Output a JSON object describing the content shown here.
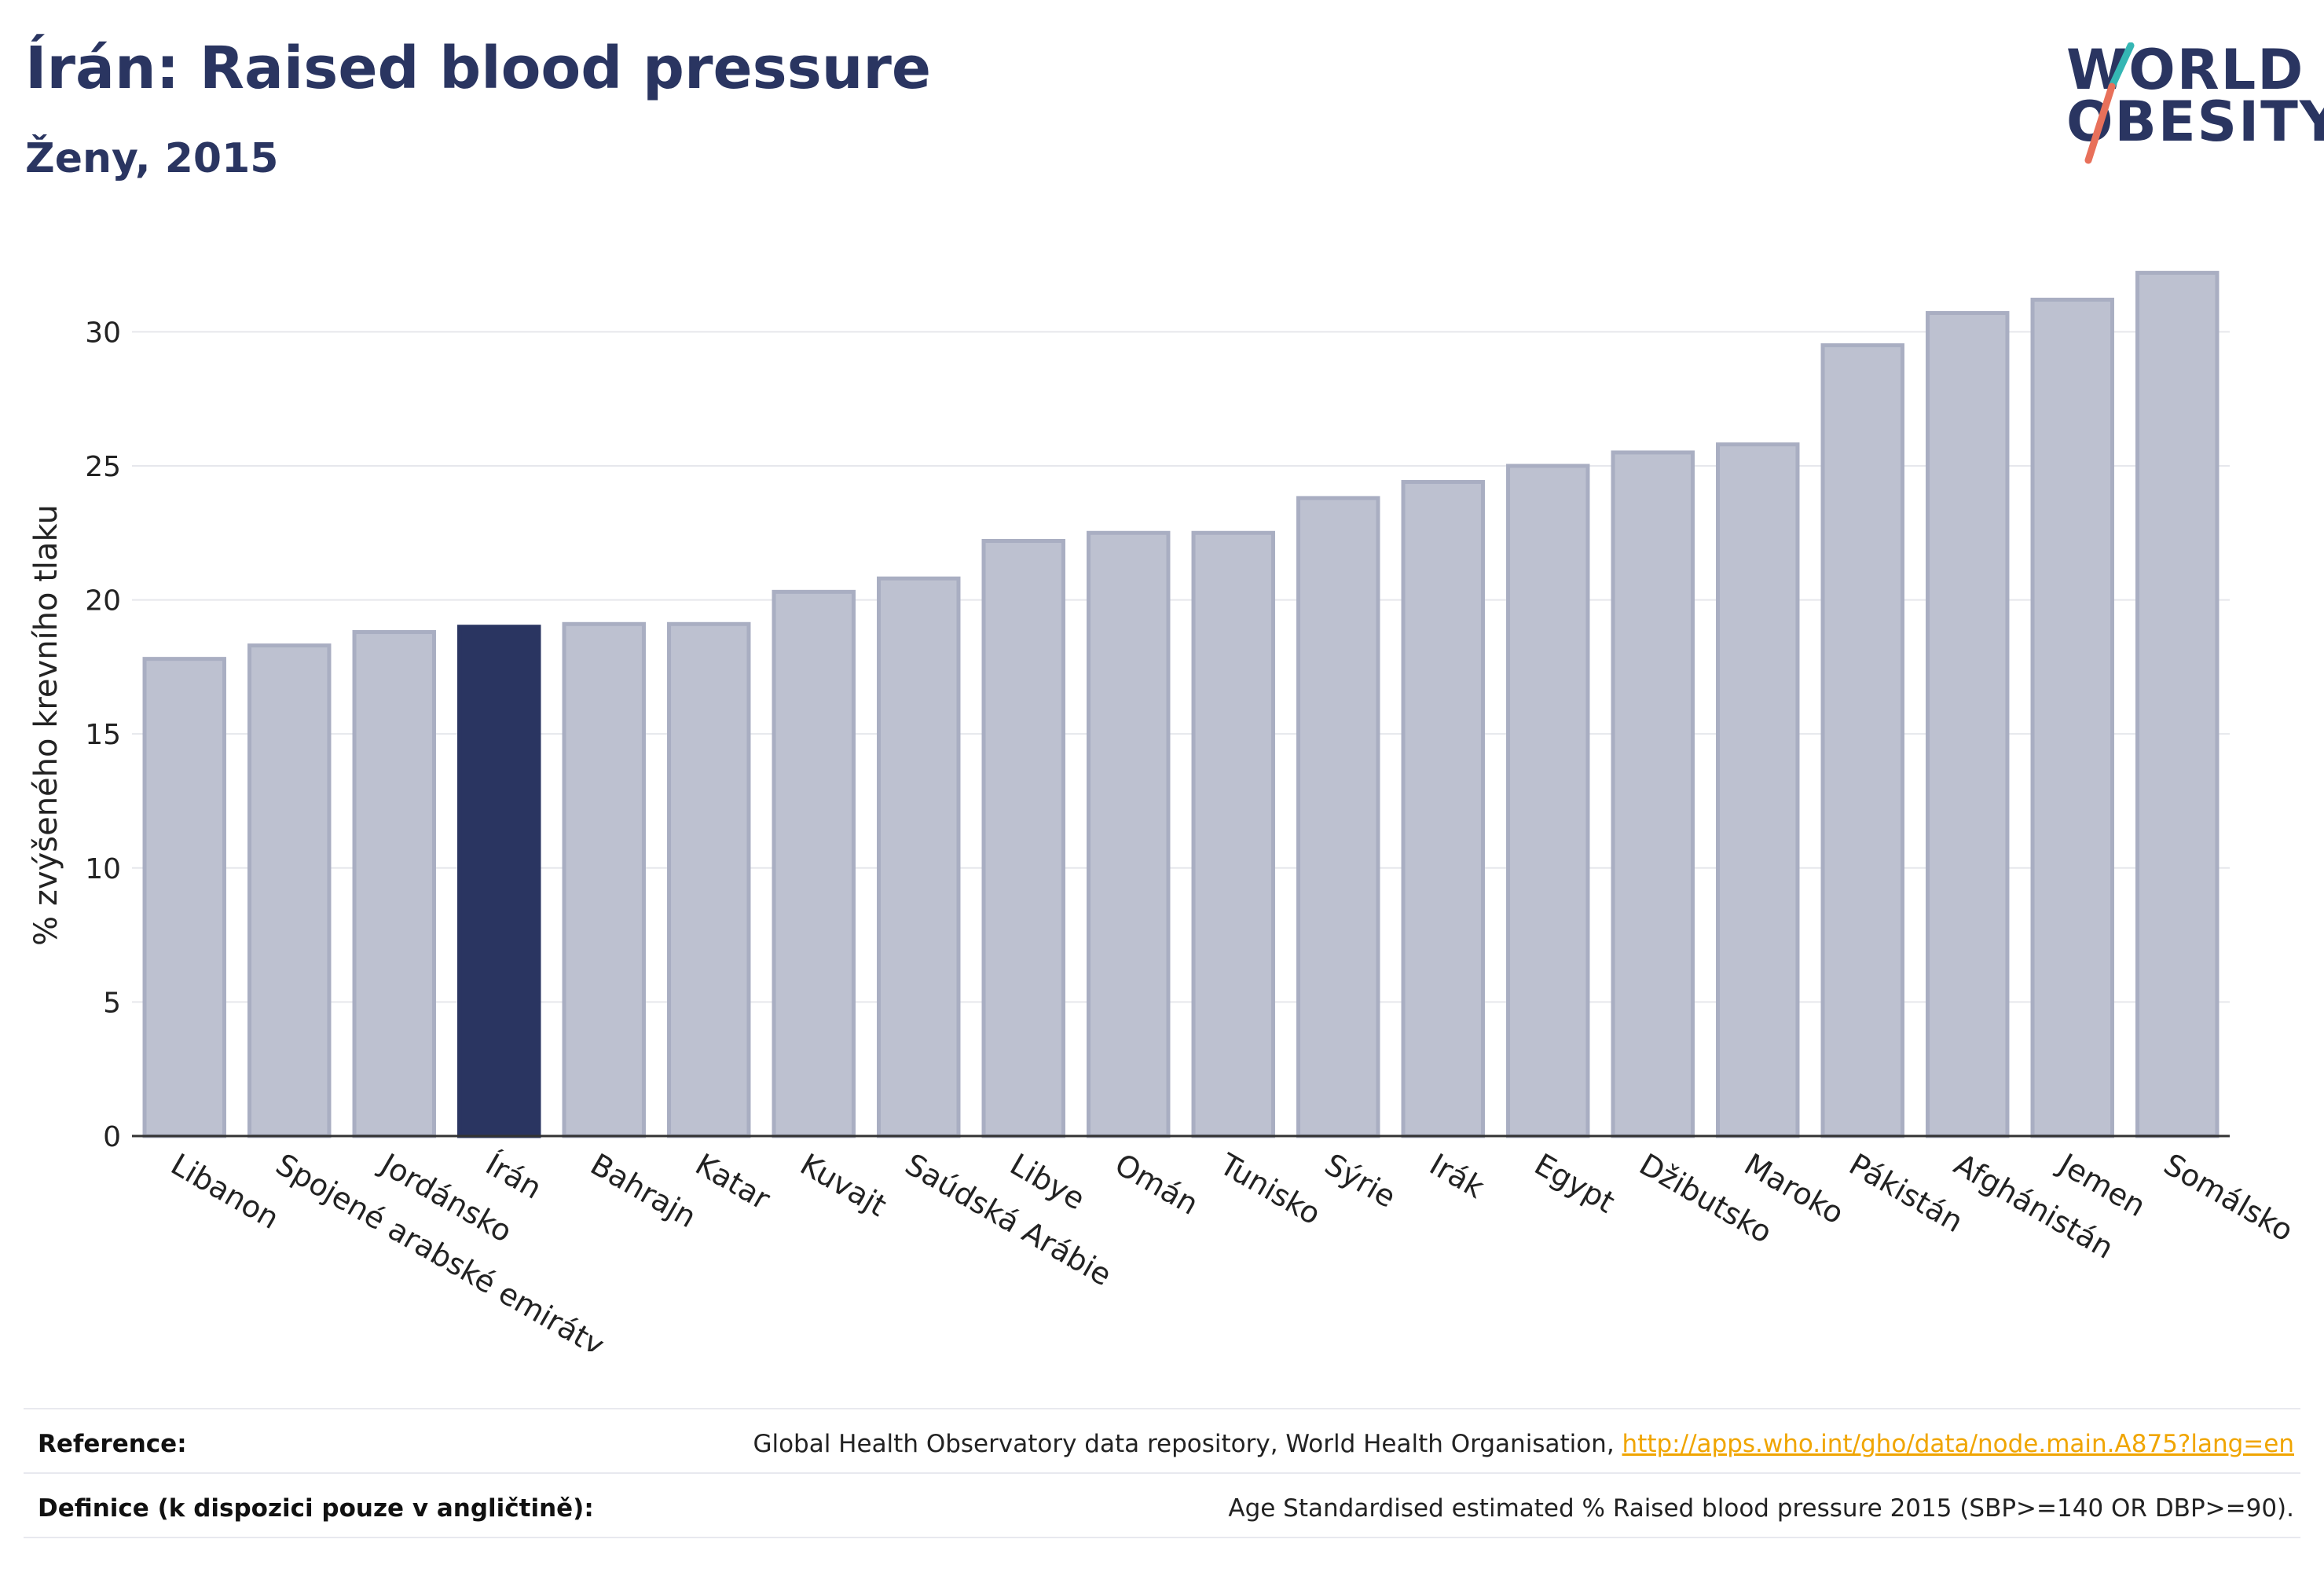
{
  "title": "Írán: Raised blood pressure",
  "subtitle": "Ženy, 2015",
  "logo": {
    "line1": "WORLD",
    "line2": "OBESITY"
  },
  "colors": {
    "highlight": "#2a3561",
    "bar": "#bdc1d0",
    "bar_border": "#a9aec2",
    "grid": "#e6e7ec"
  },
  "chart_data": {
    "type": "bar",
    "title": "Írán: Raised blood pressure",
    "subtitle": "Ženy, 2015",
    "xlabel": "",
    "ylabel": "% zvýšeného krevního tlaku",
    "ylim": [
      0,
      33
    ],
    "yticks": [
      0,
      5,
      10,
      15,
      20,
      25,
      30
    ],
    "highlight": "Írán",
    "categories": [
      "Libanon",
      "Spojené arabské emiráty",
      "Jordánsko",
      "Írán",
      "Bahrajn",
      "Katar",
      "Kuvajt",
      "Saúdská Arábie",
      "Libye",
      "Omán",
      "Tunisko",
      "Sýrie",
      "Irák",
      "Egypt",
      "Džibutsko",
      "Maroko",
      "Pákistán",
      "Afghánistán",
      "Jemen",
      "Somálsko"
    ],
    "values": [
      17.8,
      18.3,
      18.8,
      19.0,
      19.1,
      19.1,
      20.3,
      20.8,
      22.2,
      22.5,
      22.5,
      23.8,
      24.4,
      25.0,
      25.5,
      25.8,
      29.5,
      30.7,
      31.2,
      32.2
    ],
    "grid": true,
    "legend": "none"
  },
  "footer": {
    "reference_label": "Reference:",
    "reference_text": "Global Health Observatory data repository, World Health Organisation, ",
    "reference_link": "http://apps.who.int/gho/data/node.main.A875?lang=en",
    "definition_label": "Definice (k dispozici pouze v angličtině):",
    "definition_text": "Age Standardised estimated % Raised blood pressure 2015 (SBP>=140 OR DBP>=90)."
  }
}
